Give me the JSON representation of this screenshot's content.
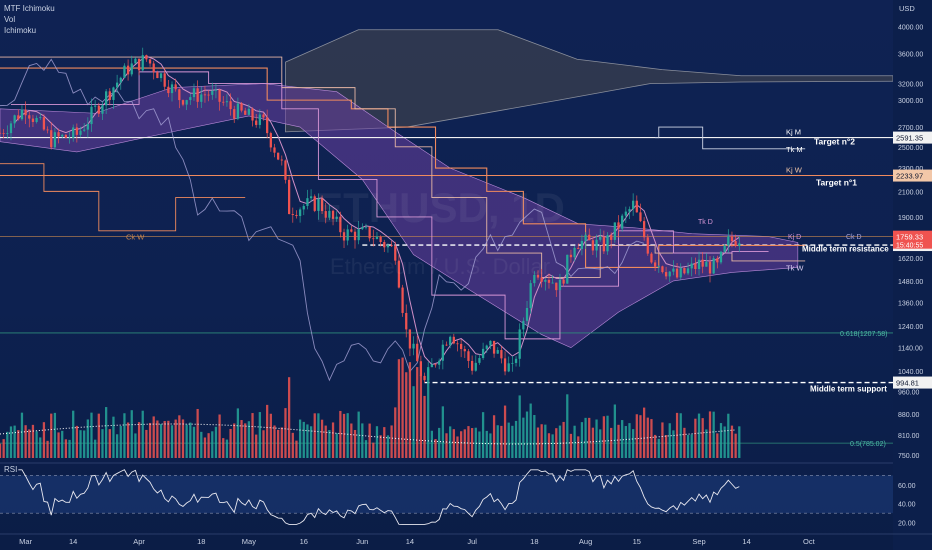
{
  "legend": {
    "indicators": [
      "MTF Ichimoku",
      "Vol",
      "Ichimoku"
    ]
  },
  "watermark": {
    "symbol": "ETHUSD, 1D",
    "name": "Ethereum / U.S. Dollar"
  },
  "colors": {
    "background": "#0e2250",
    "up": "#26a69a",
    "down": "#ef5350",
    "cloud": "#6a3f9e",
    "weekly_cloud": "#3a3f4f",
    "kijun": "#f08a5d",
    "tenkan": "#cf8fc6",
    "chikou": "#a8a4d8",
    "price_tag": "#ef5350",
    "axis_text": "#c9d1e3"
  },
  "chart_data": {
    "type": "candlestick",
    "title": "",
    "currency": "USD",
    "y_scale": "log",
    "ylim": [
      735,
      4300
    ],
    "y_ticks": [
      750,
      810,
      880,
      960,
      1040,
      1140,
      1240,
      1360,
      1480,
      1620,
      1760,
      1900,
      2100,
      2300,
      2500,
      2700,
      3000,
      3200,
      3600,
      4000
    ],
    "x_labels": [
      "Mar",
      "14",
      "Apr",
      "18",
      "May",
      "16",
      "Jun",
      "14",
      "Jul",
      "18",
      "Aug",
      "15",
      "Sep",
      "14",
      "Oct"
    ],
    "x_range": [
      "2022-02-22",
      "2022-10-24"
    ],
    "x_ticks": [
      "2022-03-01",
      "2022-03-14",
      "2022-04-01",
      "2022-04-18",
      "2022-05-01",
      "2022-05-16",
      "2022-06-01",
      "2022-06-14",
      "2022-07-01",
      "2022-07-18",
      "2022-08-01",
      "2022-08-15",
      "2022-09-01",
      "2022-09-14",
      "2022-10-01"
    ],
    "last_price": "1759.33",
    "countdown": "15:40:55",
    "ohlc_closes": [
      {
        "date": "2022-02-22",
        "close": 2640
      },
      {
        "date": "2022-03-01",
        "close": 2920
      },
      {
        "date": "2022-03-08",
        "close": 2570
      },
      {
        "date": "2022-03-15",
        "close": 2620
      },
      {
        "date": "2022-03-22",
        "close": 3000
      },
      {
        "date": "2022-03-29",
        "close": 3400
      },
      {
        "date": "2022-04-03",
        "close": 3520
      },
      {
        "date": "2022-04-08",
        "close": 3250
      },
      {
        "date": "2022-04-12",
        "close": 3030
      },
      {
        "date": "2022-04-20",
        "close": 3080
      },
      {
        "date": "2022-04-27",
        "close": 2880
      },
      {
        "date": "2022-05-05",
        "close": 2740
      },
      {
        "date": "2022-05-10",
        "close": 2330
      },
      {
        "date": "2022-05-12",
        "close": 1960
      },
      {
        "date": "2022-05-20",
        "close": 2010
      },
      {
        "date": "2022-05-27",
        "close": 1780
      },
      {
        "date": "2022-06-03",
        "close": 1780
      },
      {
        "date": "2022-06-10",
        "close": 1660
      },
      {
        "date": "2022-06-13",
        "close": 1210
      },
      {
        "date": "2022-06-18",
        "close": 995
      },
      {
        "date": "2022-06-25",
        "close": 1220
      },
      {
        "date": "2022-07-01",
        "close": 1060
      },
      {
        "date": "2022-07-06",
        "close": 1150
      },
      {
        "date": "2022-07-12",
        "close": 1040
      },
      {
        "date": "2022-07-18",
        "close": 1560
      },
      {
        "date": "2022-07-25",
        "close": 1450
      },
      {
        "date": "2022-07-29",
        "close": 1730
      },
      {
        "date": "2022-08-06",
        "close": 1700
      },
      {
        "date": "2022-08-14",
        "close": 1990
      },
      {
        "date": "2022-08-19",
        "close": 1620
      },
      {
        "date": "2022-08-26",
        "close": 1500
      },
      {
        "date": "2022-09-01",
        "close": 1580
      },
      {
        "date": "2022-09-06",
        "close": 1560
      },
      {
        "date": "2022-09-09",
        "close": 1720
      },
      {
        "date": "2022-09-12",
        "close": 1759
      }
    ],
    "levels": [
      {
        "name": "Kj M",
        "value": 2591.35,
        "label": "2591.35"
      },
      {
        "name": "Tk M",
        "value": 2480
      },
      {
        "name": "Kj W",
        "value": 2233.97,
        "label": "2233.97"
      },
      {
        "name": "Tk W",
        "value": 1560
      },
      {
        "name": "Ck W",
        "value": 1760
      },
      {
        "name": "Middle term resistance",
        "value": 1702.69,
        "label": "1702.69"
      },
      {
        "name": "Middle term support",
        "value": 994.81,
        "label": "994.81"
      },
      {
        "name": "0.618",
        "value": 1207.58,
        "label": "0.618(1207.58)"
      },
      {
        "name": "0.5",
        "value": 785.02,
        "label": "0.5(785.02)"
      }
    ],
    "annotations": {
      "kj_m": "Kj M",
      "tk_m": "Tk M",
      "kj_w": "Kj W",
      "tk_w": "Tk W",
      "ck_w": "Ck W",
      "target2": "Target n°2",
      "target1": "Target n°1",
      "resistance": "Middle term resistance",
      "support": "Middle term support",
      "tk_d": "Tk D",
      "kj_d": "Kj D",
      "ck_d": "Ck D"
    },
    "rsi": {
      "label": "RSI",
      "ylim": [
        10,
        80
      ],
      "ticks": [
        20,
        40,
        60
      ],
      "upper": 70,
      "lower": 30
    }
  }
}
